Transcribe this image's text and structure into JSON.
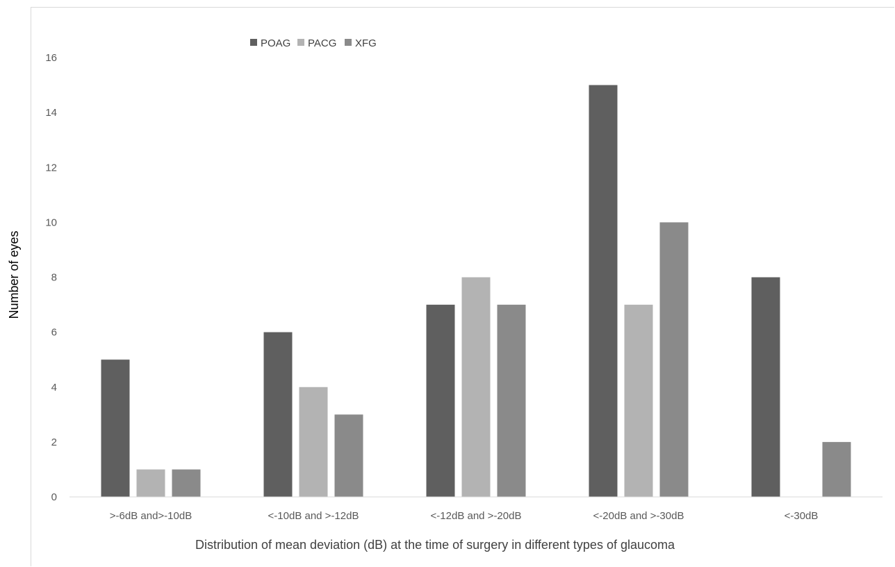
{
  "chart_data": {
    "type": "bar",
    "title": "",
    "xlabel": "Distribution of mean deviation (dB) at the time of surgery in different types of glaucoma",
    "ylabel": "Number of eyes",
    "ylim": [
      0,
      16
    ],
    "yticks": [
      0,
      2,
      4,
      6,
      8,
      10,
      12,
      14,
      16
    ],
    "grid": false,
    "legend_position": "top-left",
    "categories": [
      ">-6dB and>-10dB",
      "<-10dB and >-12dB",
      "<-12dB and >-20dB",
      "<-20dB and >-30dB",
      "<-30dB"
    ],
    "series": [
      {
        "name": "POAG",
        "color": "#5f5f5f",
        "values": [
          5,
          6,
          7,
          15,
          8
        ]
      },
      {
        "name": "PACG",
        "color": "#b3b3b3",
        "values": [
          1,
          4,
          8,
          7,
          0
        ]
      },
      {
        "name": "XFG",
        "color": "#8a8a8a",
        "values": [
          1,
          3,
          7,
          10,
          2
        ]
      }
    ]
  }
}
